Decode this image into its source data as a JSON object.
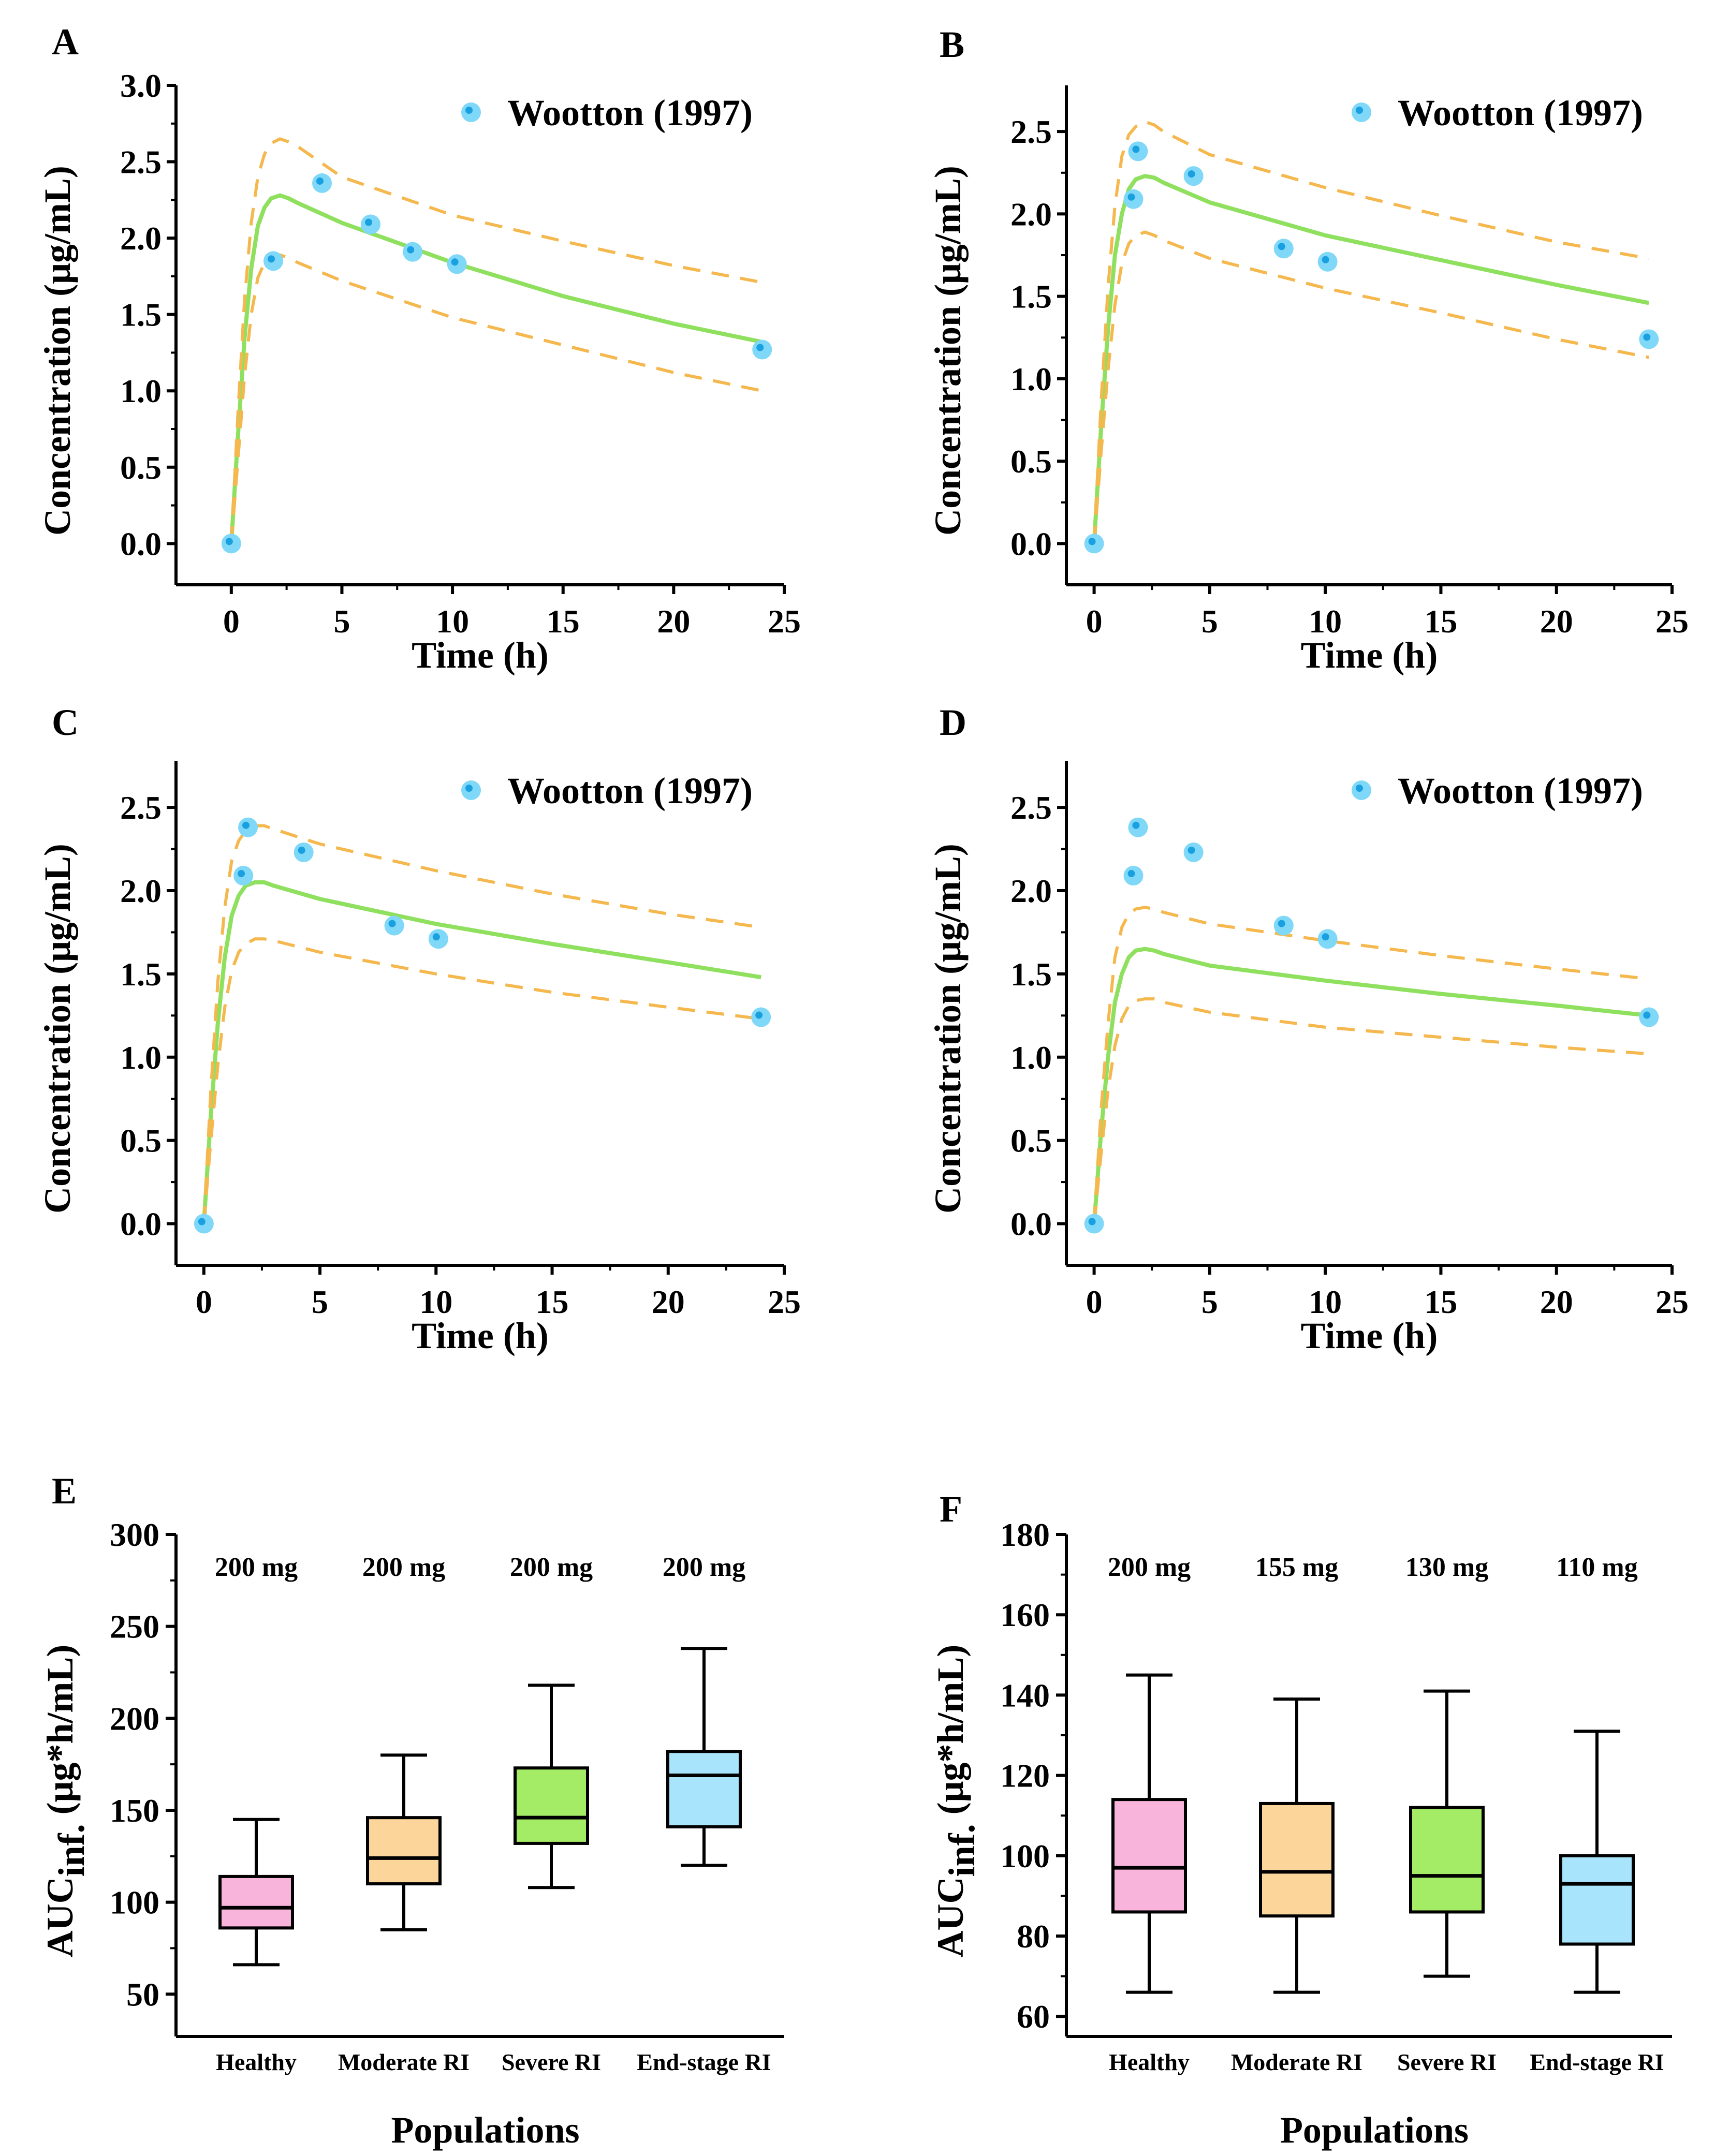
{
  "colors": {
    "median_line": "#90e060",
    "ci_line": "#f5b84e",
    "observed_fill": "#7fd8f8",
    "observed_core": "#1aa0e0",
    "box_fills": [
      "#f9b4dc",
      "#fbd59a",
      "#a4ec66",
      "#a8e4fb"
    ]
  },
  "chart_data": [
    {
      "panel": "A",
      "type": "line",
      "title": "",
      "xlabel": "Time (h)",
      "ylabel": "Concentration (μg/mL)",
      "xlim": [
        -2.5,
        25
      ],
      "ylim": [
        -0.27,
        3.0
      ],
      "xticks": [
        "0",
        "5",
        "10",
        "15",
        "20",
        "25"
      ],
      "yticks": [
        "0.0",
        "0.5",
        "1.0",
        "1.5",
        "2.0",
        "2.5",
        "3.0"
      ],
      "legend": "Wootton (1997)",
      "series": [
        {
          "name": "Median",
          "x": [
            0,
            0.3,
            0.6,
            0.9,
            1.2,
            1.5,
            1.8,
            2.2,
            2.6,
            3,
            5,
            10,
            15,
            20,
            24
          ],
          "values": [
            0.0,
            0.7,
            1.35,
            1.8,
            2.08,
            2.2,
            2.26,
            2.28,
            2.26,
            2.23,
            2.1,
            1.84,
            1.62,
            1.44,
            1.32
          ]
        },
        {
          "name": "Upper 95% CI",
          "x": [
            0,
            0.3,
            0.6,
            0.9,
            1.2,
            1.5,
            1.8,
            2.2,
            2.6,
            3,
            5,
            10,
            15,
            20,
            24
          ],
          "values": [
            0.0,
            0.85,
            1.6,
            2.1,
            2.4,
            2.55,
            2.62,
            2.65,
            2.63,
            2.6,
            2.4,
            2.15,
            1.98,
            1.82,
            1.71
          ]
        },
        {
          "name": "Lower 95% CI",
          "x": [
            0,
            0.3,
            0.6,
            0.9,
            1.2,
            1.5,
            1.8,
            2.2,
            2.6,
            3,
            5,
            10,
            15,
            20,
            24
          ],
          "values": [
            0.0,
            0.55,
            1.1,
            1.5,
            1.74,
            1.84,
            1.88,
            1.89,
            1.87,
            1.84,
            1.72,
            1.48,
            1.3,
            1.12,
            1.0
          ]
        },
        {
          "name": "Wootton (1997)",
          "x": [
            0,
            1.9,
            4.1,
            6.3,
            8.2,
            10.2,
            24
          ],
          "values": [
            0.0,
            1.85,
            2.36,
            2.09,
            1.91,
            1.83,
            1.27
          ]
        }
      ]
    },
    {
      "panel": "B",
      "type": "line",
      "title": "",
      "xlabel": "Time (h)",
      "ylabel": "Concentration (μg/mL)",
      "xlim": [
        -1.2,
        25
      ],
      "ylim": [
        -0.25,
        2.78
      ],
      "xticks": [
        "0",
        "5",
        "10",
        "15",
        "20",
        "25"
      ],
      "yticks": [
        "0.0",
        "0.5",
        "1.0",
        "1.5",
        "2.0",
        "2.5"
      ],
      "legend": "Wootton (1997)",
      "series": [
        {
          "name": "Median",
          "x": [
            0,
            0.3,
            0.6,
            0.9,
            1.2,
            1.5,
            1.8,
            2.2,
            2.6,
            3,
            5,
            10,
            15,
            20,
            24
          ],
          "values": [
            0.0,
            0.7,
            1.3,
            1.75,
            2.0,
            2.15,
            2.21,
            2.23,
            2.22,
            2.19,
            2.07,
            1.87,
            1.72,
            1.57,
            1.46
          ]
        },
        {
          "name": "Upper 95% CI",
          "x": [
            0,
            0.3,
            0.6,
            0.9,
            1.2,
            1.5,
            1.8,
            2.2,
            2.6,
            3,
            5,
            10,
            15,
            20,
            24
          ],
          "values": [
            0.0,
            0.85,
            1.55,
            2.05,
            2.35,
            2.48,
            2.53,
            2.56,
            2.54,
            2.5,
            2.36,
            2.16,
            1.99,
            1.83,
            1.73
          ]
        },
        {
          "name": "Lower 95% CI",
          "x": [
            0,
            0.3,
            0.6,
            0.9,
            1.2,
            1.5,
            1.8,
            2.2,
            2.6,
            3,
            5,
            10,
            15,
            20,
            24
          ],
          "values": [
            0.0,
            0.55,
            1.05,
            1.45,
            1.7,
            1.82,
            1.87,
            1.89,
            1.87,
            1.84,
            1.73,
            1.55,
            1.4,
            1.24,
            1.13
          ]
        },
        {
          "name": "Wootton (1997)",
          "x": [
            0,
            1.7,
            1.9,
            4.3,
            8.2,
            10.1,
            24
          ],
          "values": [
            0.0,
            2.09,
            2.38,
            2.23,
            1.79,
            1.71,
            1.24
          ]
        }
      ]
    },
    {
      "panel": "C",
      "type": "line",
      "title": "",
      "xlabel": "Time (h)",
      "ylabel": "Concentration (μg/mL)",
      "xlim": [
        -1.2,
        25
      ],
      "ylim": [
        -0.25,
        2.78
      ],
      "xticks": [
        "0",
        "5",
        "10",
        "15",
        "20",
        "25"
      ],
      "yticks": [
        "0.0",
        "0.5",
        "1.0",
        "1.5",
        "2.0",
        "2.5"
      ],
      "legend": "Wootton (1997)",
      "series": [
        {
          "name": "Median",
          "x": [
            0,
            0.3,
            0.6,
            0.9,
            1.2,
            1.5,
            1.8,
            2.2,
            2.6,
            3,
            5,
            10,
            15,
            20,
            24
          ],
          "values": [
            0.0,
            0.65,
            1.2,
            1.6,
            1.85,
            1.97,
            2.03,
            2.05,
            2.05,
            2.03,
            1.95,
            1.8,
            1.68,
            1.57,
            1.48
          ]
        },
        {
          "name": "Upper 95% CI",
          "x": [
            0,
            0.3,
            0.6,
            0.9,
            1.2,
            1.5,
            1.8,
            2.2,
            2.6,
            3,
            5,
            10,
            15,
            20,
            24
          ],
          "values": [
            0.0,
            0.8,
            1.45,
            1.9,
            2.18,
            2.3,
            2.36,
            2.39,
            2.39,
            2.37,
            2.28,
            2.12,
            1.98,
            1.86,
            1.78
          ]
        },
        {
          "name": "Lower 95% CI",
          "x": [
            0,
            0.3,
            0.6,
            0.9,
            1.2,
            1.5,
            1.8,
            2.2,
            2.6,
            3,
            5,
            10,
            15,
            20,
            24
          ],
          "values": [
            0.0,
            0.5,
            0.95,
            1.3,
            1.52,
            1.63,
            1.68,
            1.71,
            1.71,
            1.7,
            1.63,
            1.5,
            1.39,
            1.3,
            1.23
          ]
        },
        {
          "name": "Wootton (1997)",
          "x": [
            0,
            1.7,
            1.9,
            4.3,
            8.2,
            10.1,
            24
          ],
          "values": [
            0.0,
            2.09,
            2.38,
            2.23,
            1.79,
            1.71,
            1.24
          ]
        }
      ]
    },
    {
      "panel": "D",
      "type": "line",
      "title": "",
      "xlabel": "Time (h)",
      "ylabel": "Concentration (μg/mL)",
      "xlim": [
        -1.2,
        25
      ],
      "ylim": [
        -0.25,
        2.78
      ],
      "xticks": [
        "0",
        "5",
        "10",
        "15",
        "20",
        "25"
      ],
      "yticks": [
        "0.0",
        "0.5",
        "1.0",
        "1.5",
        "2.0",
        "2.5"
      ],
      "legend": "Wootton (1997)",
      "series": [
        {
          "name": "Median",
          "x": [
            0,
            0.3,
            0.6,
            0.9,
            1.2,
            1.5,
            1.8,
            2.2,
            2.6,
            3,
            5,
            10,
            15,
            20,
            24
          ],
          "values": [
            0.0,
            0.55,
            1.0,
            1.33,
            1.5,
            1.6,
            1.64,
            1.65,
            1.64,
            1.62,
            1.55,
            1.46,
            1.38,
            1.31,
            1.25
          ]
        },
        {
          "name": "Upper 95% CI",
          "x": [
            0,
            0.3,
            0.6,
            0.9,
            1.2,
            1.5,
            1.8,
            2.2,
            2.6,
            3,
            5,
            10,
            15,
            20,
            24
          ],
          "values": [
            0.0,
            0.68,
            1.2,
            1.6,
            1.78,
            1.86,
            1.89,
            1.9,
            1.89,
            1.87,
            1.8,
            1.7,
            1.61,
            1.53,
            1.47
          ]
        },
        {
          "name": "Lower 95% CI",
          "x": [
            0,
            0.3,
            0.6,
            0.9,
            1.2,
            1.5,
            1.8,
            2.2,
            2.6,
            3,
            5,
            10,
            15,
            20,
            24
          ],
          "values": [
            0.0,
            0.42,
            0.8,
            1.07,
            1.23,
            1.31,
            1.34,
            1.35,
            1.35,
            1.33,
            1.27,
            1.18,
            1.12,
            1.06,
            1.02
          ]
        },
        {
          "name": "Wootton (1997)",
          "x": [
            0,
            1.7,
            1.9,
            4.3,
            8.2,
            10.1,
            24
          ],
          "values": [
            0.0,
            2.09,
            2.38,
            2.23,
            1.79,
            1.71,
            1.24
          ]
        }
      ]
    },
    {
      "panel": "E",
      "type": "box",
      "title": "",
      "xlabel": "Populations",
      "ylabel_main": "AUC",
      "ylabel_sub": "inf.",
      "ylabel_rest": " (μg*h/mL)",
      "ylim": [
        27,
        300
      ],
      "yticks": [
        "50",
        "100",
        "150",
        "200",
        "250",
        "300"
      ],
      "categories": [
        "Healthy",
        "Moderate RI",
        "Severe RI",
        "End-stage RI"
      ],
      "doses": [
        "200 mg",
        "200 mg",
        "200 mg",
        "200 mg"
      ],
      "boxes": [
        {
          "min": 66,
          "q1": 86,
          "median": 97,
          "q3": 114,
          "max": 145
        },
        {
          "min": 85,
          "q1": 110,
          "median": 124,
          "q3": 146,
          "max": 180
        },
        {
          "min": 108,
          "q1": 132,
          "median": 146,
          "q3": 173,
          "max": 218
        },
        {
          "min": 120,
          "q1": 141,
          "median": 169,
          "q3": 182,
          "max": 238
        }
      ]
    },
    {
      "panel": "F",
      "type": "box",
      "title": "",
      "xlabel": "Populations",
      "ylabel_main": "AUC",
      "ylabel_sub": "inf.",
      "ylabel_rest": " (μg*h/mL)",
      "ylim": [
        55,
        180
      ],
      "yticks": [
        "60",
        "80",
        "100",
        "120",
        "140",
        "160",
        "180"
      ],
      "categories": [
        "Healthy",
        "Moderate RI",
        "Severe RI",
        "End-stage RI"
      ],
      "doses": [
        "200 mg",
        "155 mg",
        "130 mg",
        "110 mg"
      ],
      "boxes": [
        {
          "min": 66,
          "q1": 86,
          "median": 97,
          "q3": 114,
          "max": 145
        },
        {
          "min": 66,
          "q1": 85,
          "median": 96,
          "q3": 113,
          "max": 139
        },
        {
          "min": 70,
          "q1": 86,
          "median": 95,
          "q3": 112,
          "max": 141
        },
        {
          "min": 66,
          "q1": 78,
          "median": 93,
          "q3": 100,
          "max": 131
        }
      ]
    }
  ]
}
